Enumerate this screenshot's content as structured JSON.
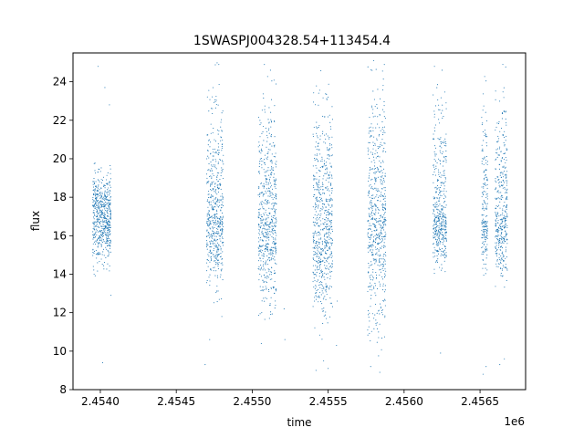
{
  "chart_data": {
    "type": "scatter",
    "title": "1SWASPJ004328.54+113454.4",
    "xlabel": "time",
    "ylabel": "flux",
    "x_offset_label": "1e6",
    "xlim": [
      2453820,
      2456800
    ],
    "ylim": [
      8,
      25.5
    ],
    "x_ticks": [
      2454000,
      2454500,
      2455000,
      2455500,
      2456000,
      2456500
    ],
    "x_tick_labels": [
      "2.4540",
      "2.4545",
      "2.4550",
      "2.4555",
      "2.4560",
      "2.4565"
    ],
    "y_ticks": [
      8,
      10,
      12,
      14,
      16,
      18,
      20,
      22,
      24
    ],
    "y_tick_labels": [
      "8",
      "10",
      "12",
      "14",
      "16",
      "18",
      "20",
      "22",
      "24"
    ],
    "grid": false,
    "marker_color": "#1f77b4",
    "series": [
      {
        "name": "",
        "observing_seasons": [
          {
            "t_start": 2453950,
            "t_end": 2454070,
            "flux_median": 17.0,
            "flux_low": 13.8,
            "flux_high": 19.8,
            "outliers": [
              [
                2453985,
                24.8
              ],
              [
                2454030,
                23.7
              ],
              [
                2454060,
                22.8
              ],
              [
                2454015,
                9.4
              ],
              [
                2454070,
                12.9
              ]
            ]
          },
          {
            "t_start": 2454700,
            "t_end": 2454810,
            "flux_median": 17.0,
            "flux_low": 12.5,
            "flux_high": 25.0,
            "outliers": [
              [
                2454720,
                10.6
              ],
              [
                2454690,
                9.3
              ],
              [
                2454800,
                11.8
              ],
              [
                2454780,
                24.9
              ]
            ]
          },
          {
            "t_start": 2455040,
            "t_end": 2455160,
            "flux_median": 16.8,
            "flux_low": 11.5,
            "flux_high": 24.3,
            "outliers": [
              [
                2455080,
                24.9
              ],
              [
                2455120,
                24.6
              ],
              [
                2455210,
                12.2
              ],
              [
                2455215,
                10.6
              ],
              [
                2455060,
                10.4
              ]
            ]
          },
          {
            "t_start": 2455400,
            "t_end": 2455530,
            "flux_median": 16.5,
            "flux_low": 10.5,
            "flux_high": 25.0,
            "outliers": [
              [
                2455420,
                9.0
              ],
              [
                2455470,
                9.5
              ],
              [
                2455500,
                9.1
              ],
              [
                2455560,
                12.6
              ],
              [
                2455555,
                10.3
              ]
            ]
          },
          {
            "t_start": 2455760,
            "t_end": 2455880,
            "flux_median": 17.0,
            "flux_low": 9.5,
            "flux_high": 25.0,
            "outliers": [
              [
                2455780,
                9.2
              ],
              [
                2455840,
                8.9
              ],
              [
                2455870,
                24.9
              ],
              [
                2455800,
                25.1
              ]
            ]
          },
          {
            "t_start": 2456190,
            "t_end": 2456280,
            "flux_median": 17.0,
            "flux_low": 14.0,
            "flux_high": 24.9,
            "outliers": [
              [
                2456240,
                9.9
              ],
              [
                2456200,
                24.8
              ],
              [
                2456250,
                24.6
              ]
            ]
          },
          {
            "t_start": 2456510,
            "t_end": 2456550,
            "flux_median": 16.8,
            "flux_low": 13.8,
            "flux_high": 24.3,
            "outliers": [
              [
                2456520,
                8.8
              ],
              [
                2456540,
                9.2
              ]
            ]
          },
          {
            "t_start": 2456600,
            "t_end": 2456680,
            "flux_median": 17.0,
            "flux_low": 13.0,
            "flux_high": 25.0,
            "outliers": [
              [
                2456630,
                9.3
              ],
              [
                2456660,
                9.6
              ],
              [
                2456650,
                24.9
              ]
            ]
          }
        ]
      }
    ]
  }
}
